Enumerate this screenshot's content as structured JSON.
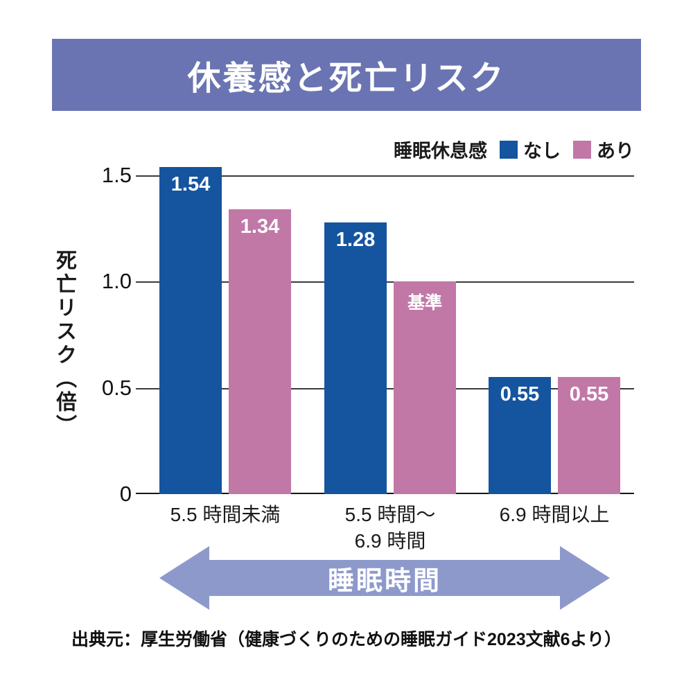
{
  "banner": {
    "title": "休養感と死亡リスク",
    "background": "#6a74b2"
  },
  "legend": {
    "label": "睡眠休息感"
  },
  "chart_data": {
    "type": "bar",
    "title": "休養感と死亡リスク",
    "legend_title": "睡眠休息感",
    "legend_position": "top-right",
    "grid": true,
    "categories": [
      [
        "5.5 時間未満"
      ],
      [
        "5.5 時間〜",
        "6.9 時間"
      ],
      [
        "6.9 時間以上"
      ]
    ],
    "series": [
      {
        "name": "なし",
        "color": "#15549f",
        "values": [
          1.54,
          1.28,
          0.55
        ],
        "bar_labels": [
          "1.54",
          "1.28",
          "0.55"
        ]
      },
      {
        "name": "あり",
        "color": "#c178a7",
        "values": [
          1.34,
          1.0,
          0.55
        ],
        "bar_labels": [
          "1.34",
          "基準",
          "0.55"
        ]
      }
    ],
    "baseline_note": "基準",
    "ylabel": "死亡リスク（倍）",
    "ylim": [
      0,
      1.5
    ],
    "yticks_top_to_bottom": [
      "1.5",
      "1.0",
      "0.5",
      "0"
    ],
    "x_axis_arrow_label": "睡眠時間"
  },
  "arrow": {
    "label": "睡眠時間",
    "color": "#8e99cb"
  },
  "source": "出典元：厚生労働省（健康づくりのための睡眠ガイド2023文献6より）"
}
